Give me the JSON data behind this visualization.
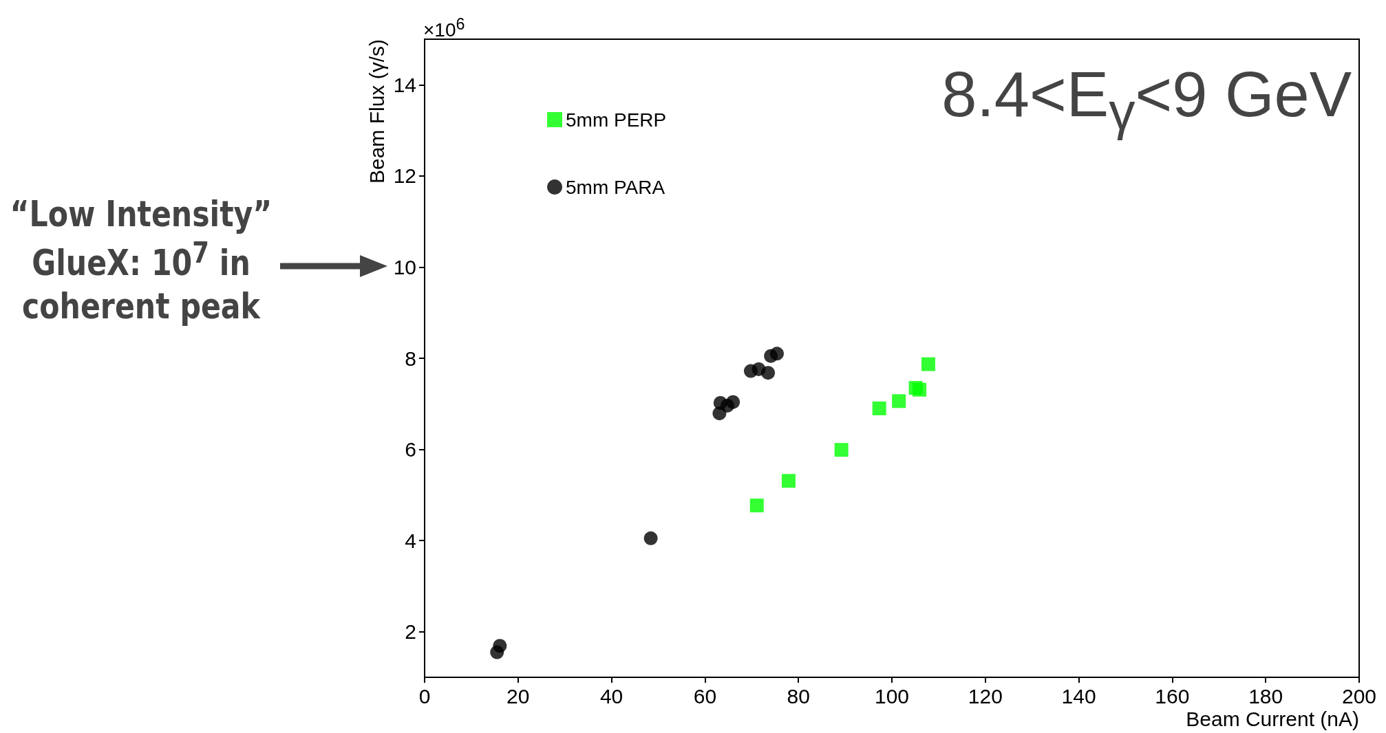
{
  "chart_data": {
    "type": "scatter",
    "title": "8.4<E$_{γ}$<9 GeV",
    "xlabel": "Beam Current (nA)",
    "ylabel": "Beam Flux (γ/s)",
    "annotations": [
      "×10$^{6}$",
      "“Low Intensity” GlueX: 10$^{7}$ in coherent peak"
    ],
    "xlim": [
      0,
      200
    ],
    "xticks": [
      0,
      20,
      40,
      60,
      80,
      100,
      120,
      140,
      160,
      180,
      200
    ],
    "ylim": [
      1,
      15
    ],
    "yticks": [
      2,
      4,
      6,
      8,
      10,
      12,
      14
    ],
    "grid": false,
    "legend": "top left",
    "series": [
      {
        "name": "5mm PERP",
        "color": "#00ff00",
        "marker": "square",
        "x": [
          71.1,
          77.9,
          89.2,
          97.3,
          101.5,
          105.1,
          105.9,
          107.8
        ],
        "values": [
          4.77,
          5.31,
          5.99,
          6.9,
          7.06,
          7.35,
          7.31,
          7.87
        ]
      },
      {
        "name": "5mm PARA",
        "color": "#000000",
        "marker": "circle",
        "x": [
          15.5,
          16.1,
          48.4,
          63.1,
          63.3,
          64.8,
          66,
          69.8,
          71.5,
          73.5,
          74.1,
          75.4
        ],
        "values": [
          1.55,
          1.69,
          4.05,
          6.79,
          7.02,
          6.96,
          7.04,
          7.72,
          7.76,
          7.68,
          8.05,
          8.1
        ]
      }
    ]
  }
}
